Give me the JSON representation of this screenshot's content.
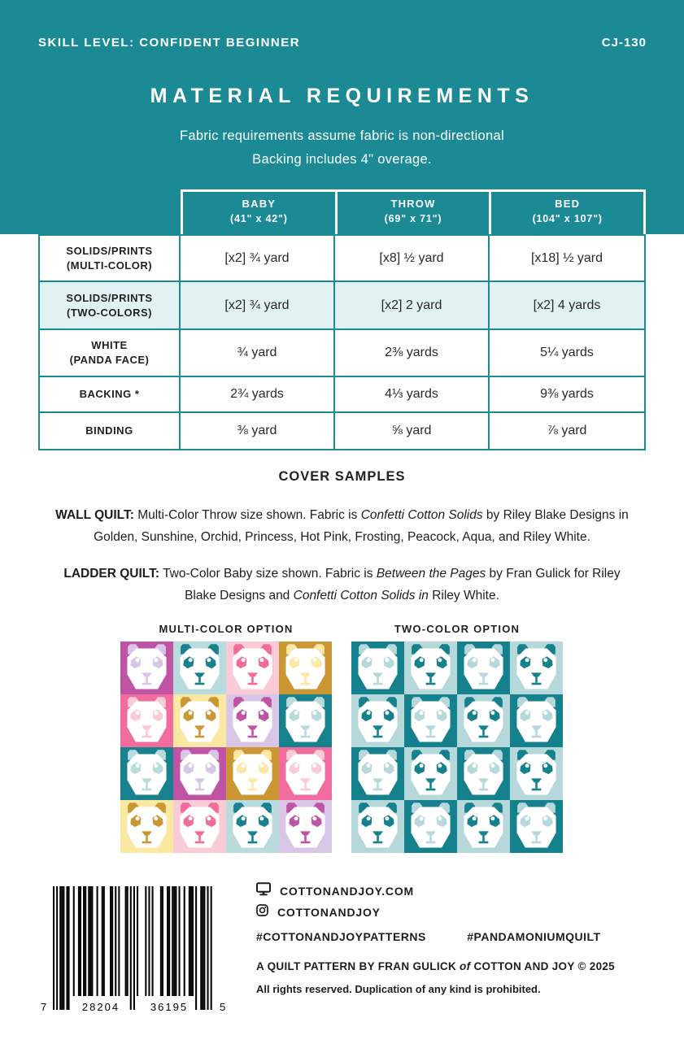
{
  "header": {
    "skill_level": "SKILL LEVEL: CONFIDENT BEGINNER",
    "pattern_code": "CJ-130",
    "title": "MATERIAL REQUIREMENTS",
    "subtitle_line1": "Fabric requirements assume fabric is non-directional",
    "subtitle_line2": "Backing includes 4\" overage."
  },
  "colors": {
    "teal_band": "#1B8A94",
    "table_border": "#1B8A94",
    "shaded_row": "#E2F1F3",
    "body_text": "#231F20",
    "header_text": "#FFFFFF"
  },
  "table": {
    "columns": [
      {
        "name": "BABY",
        "size": "(41\" x 42\")"
      },
      {
        "name": "THROW",
        "size": "(69\" x 71\")"
      },
      {
        "name": "BED",
        "size": "(104\" x 107\")"
      }
    ],
    "rows": [
      {
        "label1": "SOLIDS/PRINTS",
        "label2": "(MULTI-COLOR)",
        "values": [
          "[x2] ¾ yard",
          "[x8] ½ yard",
          "[x18] ½ yard"
        ]
      },
      {
        "label1": "SOLIDS/PRINTS",
        "label2": "(TWO-COLORS)",
        "values": [
          "[x2] ¾ yard",
          "[x2] 2 yard",
          "[x2] 4 yards"
        ]
      },
      {
        "label1": "WHITE",
        "label2": "(PANDA FACE)",
        "values": [
          "¾ yard",
          "2⅜ yards",
          "5¼ yards"
        ]
      },
      {
        "label1": "BACKING *",
        "label2": "",
        "values": [
          "2¾ yards",
          "4⅓ yards",
          "9⅜ yards"
        ]
      },
      {
        "label1": "BINDING",
        "label2": "",
        "values": [
          "⅜ yard",
          "⅝ yard",
          "⅞ yard"
        ]
      }
    ]
  },
  "cover_samples": {
    "heading": "COVER SAMPLES",
    "wall_quilt": [
      {
        "t": "WALL QUILT:",
        "b": true
      },
      {
        "t": " Multi-Color Throw size shown. Fabric is "
      },
      {
        "t": "Confetti Cotton Solids",
        "i": true
      },
      {
        "t": " by Riley Blake Designs in Golden, Sunshine, Orchid, Princess, Hot Pink, Frosting, Peacock, Aqua, and Riley White."
      }
    ],
    "ladder_quilt": [
      {
        "t": "LADDER QUILT:",
        "b": true
      },
      {
        "t": " Two-Color Baby size shown. Fabric is "
      },
      {
        "t": "Between the Pages",
        "i": true
      },
      {
        "t": " by Fran Gulick for Riley Blake Designs and "
      },
      {
        "t": "Confetti Cotton Solids in",
        "i": true
      },
      {
        "t": " Riley White."
      }
    ]
  },
  "quilts": {
    "palette": {
      "golden": "#CB9733",
      "sunshine": "#FBE8A3",
      "orchid": "#C054A4",
      "princess": "#F8CBD7",
      "hot_pink": "#F16B9D",
      "frosting": "#D9C6E7",
      "peacock": "#17828E",
      "aqua": "#B9DBDE",
      "face_white": "#FFFFFF",
      "two_color_teal": "#15818D",
      "two_color_aqua": "#B6D8DB"
    },
    "multi": {
      "label": "MULTI-COLOR OPTION",
      "cells": [
        [
          "orchid",
          "frosting"
        ],
        [
          "aqua",
          "peacock"
        ],
        [
          "princess",
          "hot_pink"
        ],
        [
          "golden",
          "sunshine"
        ],
        [
          "hot_pink",
          "princess"
        ],
        [
          "sunshine",
          "golden"
        ],
        [
          "frosting",
          "orchid"
        ],
        [
          "peacock",
          "aqua"
        ],
        [
          "peacock",
          "aqua"
        ],
        [
          "orchid",
          "frosting"
        ],
        [
          "golden",
          "sunshine"
        ],
        [
          "hot_pink",
          "princess"
        ],
        [
          "sunshine",
          "golden"
        ],
        [
          "princess",
          "hot_pink"
        ],
        [
          "aqua",
          "peacock"
        ],
        [
          "frosting",
          "orchid"
        ]
      ]
    },
    "two": {
      "label": "TWO-COLOR OPTION",
      "cells": [
        [
          "two_color_teal",
          "two_color_aqua"
        ],
        [
          "two_color_aqua",
          "two_color_teal"
        ],
        [
          "two_color_teal",
          "two_color_aqua"
        ],
        [
          "two_color_aqua",
          "two_color_teal"
        ],
        [
          "two_color_aqua",
          "two_color_teal"
        ],
        [
          "two_color_teal",
          "two_color_aqua"
        ],
        [
          "two_color_aqua",
          "two_color_teal"
        ],
        [
          "two_color_teal",
          "two_color_aqua"
        ],
        [
          "two_color_teal",
          "two_color_aqua"
        ],
        [
          "two_color_aqua",
          "two_color_teal"
        ],
        [
          "two_color_teal",
          "two_color_aqua"
        ],
        [
          "two_color_aqua",
          "two_color_teal"
        ],
        [
          "two_color_aqua",
          "two_color_teal"
        ],
        [
          "two_color_teal",
          "two_color_aqua"
        ],
        [
          "two_color_aqua",
          "two_color_teal"
        ],
        [
          "two_color_teal",
          "two_color_aqua"
        ]
      ]
    }
  },
  "footer": {
    "icons": {
      "website": "monitor-icon",
      "instagram": "instagram-icon"
    },
    "website": "COTTONANDJOY.COM",
    "instagram": "COTTONANDJOY",
    "hashtag1": "#COTTONANDJOYPATTERNS",
    "hashtag2": "#PANDAMONIUMQUILT",
    "credit": [
      {
        "t": "A QUILT PATTERN BY FRAN GULICK "
      },
      {
        "t": "of",
        "i": true
      },
      {
        "t": " COTTON AND JOY © 2025"
      }
    ],
    "rights": "All rights reserved. Duplication of any kind is prohibited.",
    "barcode_digits": "728204361955",
    "barcode_display": [
      "7",
      "28204",
      "36195",
      "5"
    ]
  }
}
